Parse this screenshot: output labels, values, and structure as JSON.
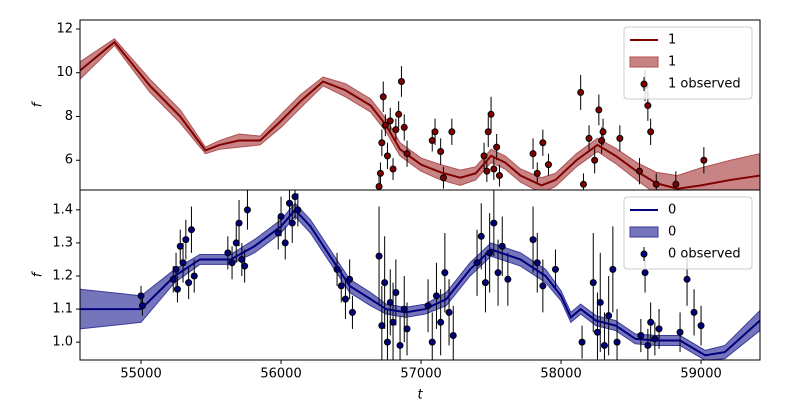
{
  "chart_data": [
    {
      "type": "line",
      "ylabel": "f",
      "legend": "upper right",
      "xlim": [
        54564,
        59421
      ],
      "ylim": [
        4.64,
        12.41
      ],
      "yticks": [
        6,
        8,
        10,
        12
      ],
      "model": {
        "name": "1",
        "color": "#800000",
        "x": [
          54564,
          54810,
          55064,
          55280,
          55460,
          55560,
          55700,
          55850,
          56000,
          56140,
          56300,
          56460,
          56640,
          56750,
          56850,
          57000,
          57140,
          57280,
          57390,
          57500,
          57600,
          57710,
          57860,
          57960,
          58110,
          58260,
          58390,
          58540,
          58680,
          58830,
          59000,
          59210,
          59420
        ],
        "values": [
          10.1,
          11.4,
          9.4,
          8.0,
          6.45,
          6.7,
          6.9,
          6.9,
          7.8,
          8.7,
          9.6,
          9.2,
          8.5,
          7.6,
          6.5,
          5.8,
          5.45,
          5.2,
          5.4,
          6.2,
          5.9,
          5.3,
          4.85,
          5.1,
          6.0,
          6.7,
          6.2,
          5.5,
          4.95,
          4.7,
          4.85,
          5.1,
          5.3
        ]
      },
      "band": {
        "name": "1",
        "color": "#b05050",
        "spread": [
          0.4,
          0.15,
          0.3,
          0.3,
          0.15,
          0.2,
          0.3,
          0.2,
          0.3,
          0.3,
          0.2,
          0.3,
          0.3,
          0.3,
          0.3,
          0.3,
          0.35,
          0.35,
          0.3,
          0.3,
          0.3,
          0.3,
          0.35,
          0.3,
          0.3,
          0.3,
          0.35,
          0.4,
          0.5,
          0.6,
          0.8,
          0.9,
          1.0
        ]
      },
      "observed": {
        "name": "1 observed",
        "color": "#800000",
        "x": [
          56700,
          56710,
          56720,
          56730,
          56745,
          56760,
          56780,
          56800,
          56820,
          56840,
          56860,
          56880,
          56900,
          57080,
          57100,
          57140,
          57160,
          57220,
          57450,
          57470,
          57480,
          57500,
          57520,
          57540,
          57560,
          57800,
          57830,
          57870,
          57910,
          58140,
          58160,
          58200,
          58240,
          58270,
          58290,
          58300,
          58420,
          58560,
          58600,
          58620,
          58640,
          58680,
          58820,
          59020
        ],
        "values": [
          4.8,
          5.4,
          6.8,
          8.9,
          7.6,
          6.2,
          7.8,
          5.6,
          7.4,
          8.1,
          9.6,
          7.5,
          6.3,
          6.9,
          7.3,
          6.4,
          5.2,
          7.3,
          6.2,
          5.5,
          7.3,
          8.1,
          5.6,
          6.6,
          5.3,
          6.3,
          5.4,
          6.8,
          5.8,
          9.1,
          4.9,
          7.0,
          6.0,
          8.3,
          6.9,
          7.3,
          7.0,
          5.5,
          9.4,
          8.5,
          7.3,
          4.9,
          4.9,
          6.0
        ],
        "errors": [
          0.5,
          0.5,
          0.6,
          0.7,
          0.5,
          0.6,
          0.6,
          0.5,
          0.5,
          0.6,
          0.7,
          0.6,
          0.6,
          0.5,
          0.6,
          0.6,
          0.5,
          0.6,
          0.6,
          0.5,
          0.7,
          0.8,
          0.5,
          0.6,
          0.5,
          0.7,
          0.5,
          0.6,
          0.5,
          0.8,
          0.5,
          0.6,
          0.6,
          0.7,
          0.6,
          0.6,
          0.6,
          0.6,
          0.7,
          0.7,
          0.6,
          0.5,
          0.6,
          0.6
        ]
      }
    },
    {
      "type": "line",
      "ylabel": "f",
      "xlabel": "t",
      "legend": "upper right",
      "xlim": [
        54564,
        59421
      ],
      "ylim": [
        0.946,
        1.46
      ],
      "yticks": [
        {
          "value": 1.0,
          "label": "1.0"
        },
        1.1,
        1.2,
        1.3,
        1.4
      ],
      "xticks": [
        55000,
        56000,
        57000,
        58000,
        59000
      ],
      "model": {
        "name": "0",
        "color": "#00007f",
        "x": [
          54564,
          55000,
          55240,
          55420,
          55640,
          55810,
          56000,
          56100,
          56210,
          56350,
          56490,
          56640,
          56750,
          56890,
          57030,
          57180,
          57350,
          57500,
          57710,
          57890,
          58000,
          58070,
          58140,
          58250,
          58390,
          58530,
          58680,
          58850,
          59030,
          59170,
          59420
        ],
        "values": [
          1.1,
          1.1,
          1.2,
          1.25,
          1.25,
          1.29,
          1.35,
          1.4,
          1.35,
          1.26,
          1.17,
          1.13,
          1.1,
          1.09,
          1.1,
          1.13,
          1.22,
          1.28,
          1.25,
          1.2,
          1.14,
          1.075,
          1.1,
          1.065,
          1.05,
          1.01,
          1.005,
          1.005,
          0.96,
          0.97,
          1.065
        ]
      },
      "band": {
        "name": "0",
        "color": "#3a3aa0",
        "spread": [
          0.06,
          0.04,
          0.02,
          0.015,
          0.015,
          0.02,
          0.02,
          0.02,
          0.02,
          0.02,
          0.02,
          0.02,
          0.015,
          0.015,
          0.015,
          0.02,
          0.02,
          0.02,
          0.02,
          0.02,
          0.015,
          0.015,
          0.015,
          0.015,
          0.015,
          0.015,
          0.015,
          0.015,
          0.015,
          0.02,
          0.03
        ]
      },
      "observed": {
        "name": "0 observed",
        "color": "#00007f",
        "x": [
          55000,
          55010,
          55230,
          55250,
          55260,
          55280,
          55300,
          55320,
          55340,
          55360,
          55380,
          55620,
          55650,
          55680,
          55700,
          55720,
          55740,
          55760,
          55980,
          56000,
          56030,
          56060,
          56080,
          56100,
          56120,
          56400,
          56430,
          56460,
          56490,
          56510,
          56700,
          56720,
          56740,
          56760,
          56780,
          56800,
          56820,
          56850,
          56880,
          56900,
          57050,
          57080,
          57110,
          57140,
          57170,
          57200,
          57230,
          57400,
          57430,
          57460,
          57490,
          57520,
          57550,
          57580,
          57620,
          57800,
          57830,
          57870,
          57960,
          58150,
          58230,
          58260,
          58280,
          58310,
          58340,
          58370,
          58400,
          58570,
          58600,
          58620,
          58640,
          58670,
          58700,
          58850,
          58900,
          58950,
          59000
        ],
        "values": [
          1.14,
          1.11,
          1.19,
          1.22,
          1.16,
          1.29,
          1.24,
          1.31,
          1.18,
          1.34,
          1.2,
          1.27,
          1.24,
          1.3,
          1.36,
          1.25,
          1.23,
          1.4,
          1.33,
          1.38,
          1.3,
          1.42,
          1.36,
          1.44,
          1.4,
          1.22,
          1.17,
          1.13,
          1.19,
          1.09,
          1.26,
          1.05,
          1.18,
          1.0,
          1.12,
          1.06,
          1.15,
          0.99,
          1.1,
          1.04,
          1.11,
          1.0,
          1.14,
          1.06,
          1.21,
          1.09,
          1.02,
          1.24,
          1.32,
          1.18,
          1.27,
          1.36,
          1.21,
          1.29,
          1.19,
          1.31,
          1.24,
          1.17,
          1.22,
          1.0,
          1.18,
          1.03,
          1.12,
          0.99,
          1.08,
          1.22,
          1.0,
          1.02,
          1.21,
          0.99,
          1.06,
          1.01,
          1.04,
          1.03,
          1.19,
          1.09,
          1.05
        ],
        "errors": [
          0.03,
          0.03,
          0.04,
          0.05,
          0.04,
          0.05,
          0.06,
          0.06,
          0.05,
          0.07,
          0.05,
          0.05,
          0.05,
          0.06,
          0.07,
          0.05,
          0.05,
          0.06,
          0.05,
          0.06,
          0.05,
          0.06,
          0.06,
          0.07,
          0.05,
          0.05,
          0.05,
          0.06,
          0.06,
          0.05,
          0.15,
          0.12,
          0.14,
          0.1,
          0.1,
          0.12,
          0.1,
          0.09,
          0.1,
          0.08,
          0.08,
          0.09,
          0.1,
          0.1,
          0.12,
          0.1,
          0.09,
          0.1,
          0.1,
          0.09,
          0.12,
          0.1,
          0.1,
          0.09,
          0.08,
          0.1,
          0.09,
          0.08,
          0.06,
          0.05,
          0.15,
          0.12,
          0.15,
          0.1,
          0.12,
          0.13,
          0.1,
          0.05,
          0.06,
          0.05,
          0.06,
          0.05,
          0.06,
          0.06,
          0.08,
          0.07,
          0.06
        ]
      }
    }
  ]
}
